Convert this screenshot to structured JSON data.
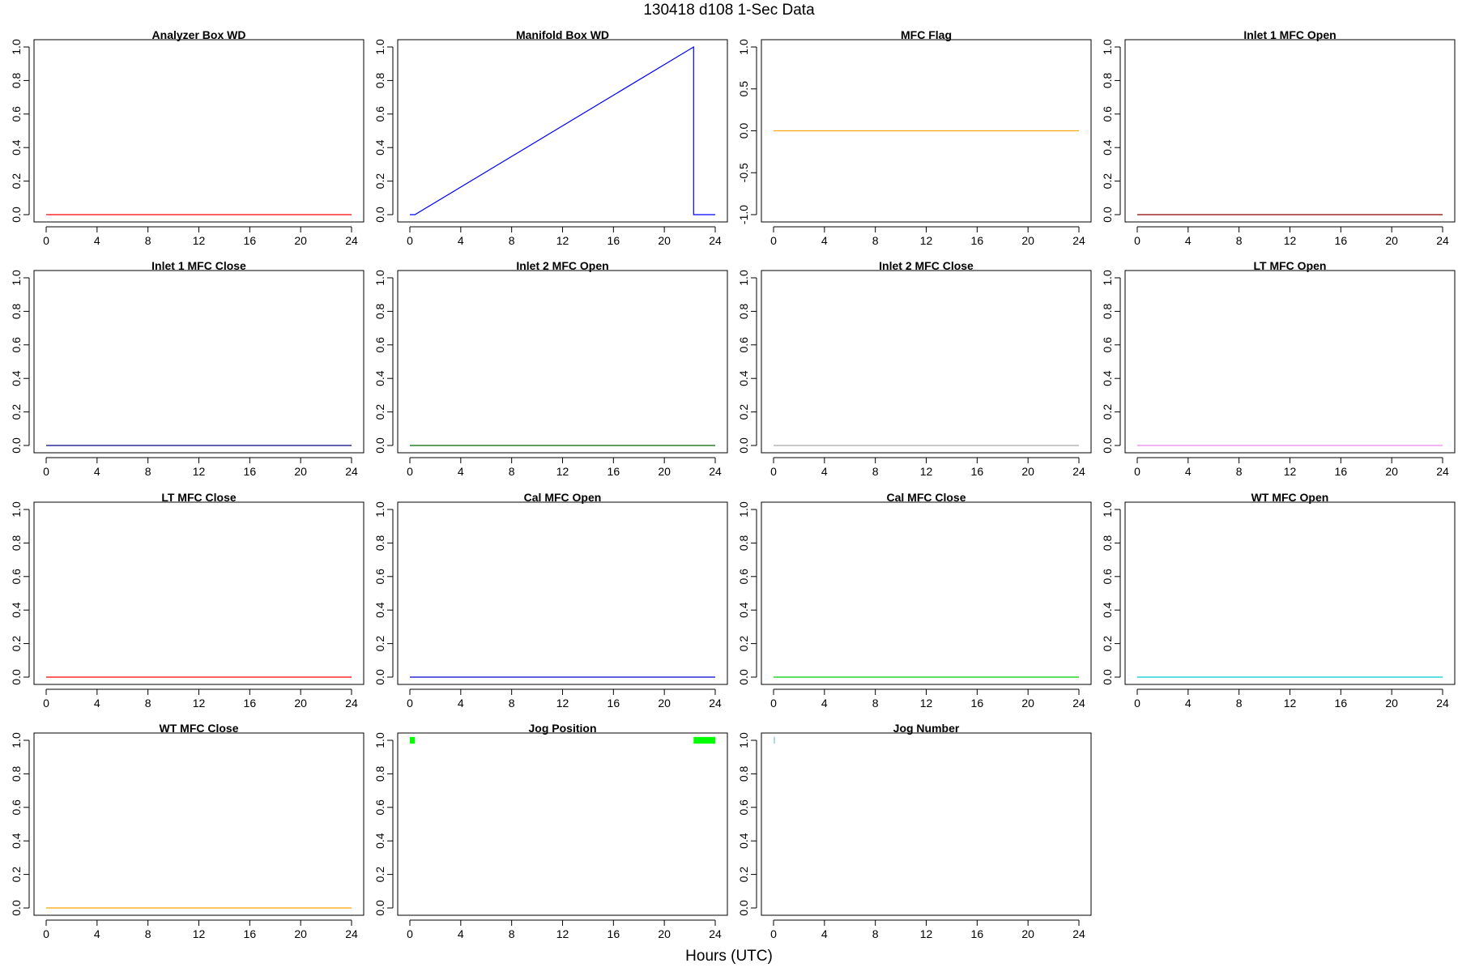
{
  "figure": {
    "title": "130418   d108   1-Sec Data",
    "xlabel": "Hours (UTC)"
  },
  "chart_data": [
    {
      "type": "line",
      "title": "Analyzer Box WD",
      "color": "#FF0000",
      "xlim": [
        0,
        24
      ],
      "ylim": [
        0,
        1
      ],
      "xticks": [
        0,
        4,
        8,
        12,
        16,
        20,
        24
      ],
      "yticks": [
        "0.0",
        "0.2",
        "0.4",
        "0.6",
        "0.8",
        "1.0"
      ],
      "series": [
        {
          "x": [
            0,
            24
          ],
          "y": [
            0,
            0
          ]
        }
      ]
    },
    {
      "type": "line",
      "title": "Manifold Box WD",
      "color": "#0000FF",
      "xlim": [
        0,
        24
      ],
      "ylim": [
        0,
        1
      ],
      "xticks": [
        0,
        4,
        8,
        12,
        16,
        20,
        24
      ],
      "yticks": [
        "0.0",
        "0.2",
        "0.4",
        "0.6",
        "0.8",
        "1.0"
      ],
      "series": [
        {
          "x": [
            0,
            0.4,
            22.3,
            22.3,
            24
          ],
          "y": [
            0,
            0,
            1,
            0,
            0
          ]
        }
      ]
    },
    {
      "type": "line",
      "title": "MFC Flag",
      "color": "#FFA500",
      "xlim": [
        0,
        24
      ],
      "ylim": [
        -1,
        1
      ],
      "xticks": [
        0,
        4,
        8,
        12,
        16,
        20,
        24
      ],
      "yticks": [
        "-1.0",
        "-0.5",
        "0.0",
        "0.5",
        "1.0"
      ],
      "series": [
        {
          "x": [
            0,
            24
          ],
          "y": [
            0,
            0
          ]
        }
      ]
    },
    {
      "type": "line",
      "title": "Inlet 1 MFC Open",
      "color": "#8B0000",
      "xlim": [
        0,
        24
      ],
      "ylim": [
        0,
        1
      ],
      "xticks": [
        0,
        4,
        8,
        12,
        16,
        20,
        24
      ],
      "yticks": [
        "0.0",
        "0.2",
        "0.4",
        "0.6",
        "0.8",
        "1.0"
      ],
      "series": [
        {
          "x": [
            0,
            24
          ],
          "y": [
            0,
            0
          ]
        }
      ]
    },
    {
      "type": "line",
      "title": "Inlet 1 MFC Close",
      "color": "#00008B",
      "xlim": [
        0,
        24
      ],
      "ylim": [
        0,
        1
      ],
      "xticks": [
        0,
        4,
        8,
        12,
        16,
        20,
        24
      ],
      "yticks": [
        "0.0",
        "0.2",
        "0.4",
        "0.6",
        "0.8",
        "1.0"
      ],
      "series": [
        {
          "x": [
            0,
            24
          ],
          "y": [
            0,
            0
          ]
        }
      ]
    },
    {
      "type": "line",
      "title": "Inlet 2 MFC Open",
      "color": "#006400",
      "xlim": [
        0,
        24
      ],
      "ylim": [
        0,
        1
      ],
      "xticks": [
        0,
        4,
        8,
        12,
        16,
        20,
        24
      ],
      "yticks": [
        "0.0",
        "0.2",
        "0.4",
        "0.6",
        "0.8",
        "1.0"
      ],
      "series": [
        {
          "x": [
            0,
            24
          ],
          "y": [
            0,
            0
          ]
        }
      ]
    },
    {
      "type": "line",
      "title": "Inlet 2 MFC Close",
      "color": "#A9A9A9",
      "xlim": [
        0,
        24
      ],
      "ylim": [
        0,
        1
      ],
      "xticks": [
        0,
        4,
        8,
        12,
        16,
        20,
        24
      ],
      "yticks": [
        "0.0",
        "0.2",
        "0.4",
        "0.6",
        "0.8",
        "1.0"
      ],
      "series": [
        {
          "x": [
            0,
            24
          ],
          "y": [
            0,
            0
          ]
        }
      ]
    },
    {
      "type": "line",
      "title": "LT MFC Open",
      "color": "#EE82EE",
      "xlim": [
        0,
        24
      ],
      "ylim": [
        0,
        1
      ],
      "xticks": [
        0,
        4,
        8,
        12,
        16,
        20,
        24
      ],
      "yticks": [
        "0.0",
        "0.2",
        "0.4",
        "0.6",
        "0.8",
        "1.0"
      ],
      "series": [
        {
          "x": [
            0,
            24
          ],
          "y": [
            0,
            0
          ]
        }
      ]
    },
    {
      "type": "line",
      "title": "LT MFC Close",
      "color": "#FF0000",
      "xlim": [
        0,
        24
      ],
      "ylim": [
        0,
        1
      ],
      "xticks": [
        0,
        4,
        8,
        12,
        16,
        20,
        24
      ],
      "yticks": [
        "0.0",
        "0.2",
        "0.4",
        "0.6",
        "0.8",
        "1.0"
      ],
      "series": [
        {
          "x": [
            0,
            24
          ],
          "y": [
            0,
            0
          ]
        }
      ]
    },
    {
      "type": "line",
      "title": "Cal MFC Open",
      "color": "#0000CD",
      "xlim": [
        0,
        24
      ],
      "ylim": [
        0,
        1
      ],
      "xticks": [
        0,
        4,
        8,
        12,
        16,
        20,
        24
      ],
      "yticks": [
        "0.0",
        "0.2",
        "0.4",
        "0.6",
        "0.8",
        "1.0"
      ],
      "series": [
        {
          "x": [
            0,
            24
          ],
          "y": [
            0,
            0
          ]
        }
      ]
    },
    {
      "type": "line",
      "title": "Cal MFC Close",
      "color": "#00CC00",
      "xlim": [
        0,
        24
      ],
      "ylim": [
        0,
        1
      ],
      "xticks": [
        0,
        4,
        8,
        12,
        16,
        20,
        24
      ],
      "yticks": [
        "0.0",
        "0.2",
        "0.4",
        "0.6",
        "0.8",
        "1.0"
      ],
      "series": [
        {
          "x": [
            0,
            24
          ],
          "y": [
            0,
            0
          ]
        }
      ]
    },
    {
      "type": "line",
      "title": "WT MFC Open",
      "color": "#00CED1",
      "xlim": [
        0,
        24
      ],
      "ylim": [
        0,
        1
      ],
      "xticks": [
        0,
        4,
        8,
        12,
        16,
        20,
        24
      ],
      "yticks": [
        "0.0",
        "0.2",
        "0.4",
        "0.6",
        "0.8",
        "1.0"
      ],
      "series": [
        {
          "x": [
            0,
            24
          ],
          "y": [
            0,
            0
          ]
        }
      ]
    },
    {
      "type": "line",
      "title": "WT MFC Close",
      "color": "#FFA500",
      "xlim": [
        0,
        24
      ],
      "ylim": [
        0,
        1
      ],
      "xticks": [
        0,
        4,
        8,
        12,
        16,
        20,
        24
      ],
      "yticks": [
        "0.0",
        "0.2",
        "0.4",
        "0.6",
        "0.8",
        "1.0"
      ],
      "series": [
        {
          "x": [
            0,
            24
          ],
          "y": [
            0,
            0
          ]
        }
      ]
    },
    {
      "type": "bar",
      "title": "Jog Position",
      "color": "#00FF00",
      "xlim": [
        0,
        24
      ],
      "ylim": [
        0,
        1
      ],
      "xticks": [
        0,
        4,
        8,
        12,
        16,
        20,
        24
      ],
      "yticks": [
        "0.0",
        "0.2",
        "0.4",
        "0.6",
        "0.8",
        "1.0"
      ],
      "segments": [
        {
          "x0": 0.0,
          "x1": 0.4,
          "y0": 0.98,
          "y1": 1.02
        },
        {
          "x0": 22.3,
          "x1": 24.0,
          "y0": 0.98,
          "y1": 1.02
        }
      ]
    },
    {
      "type": "bar",
      "title": "Jog Number",
      "color": "#ADD8E6",
      "xlim": [
        0,
        24
      ],
      "ylim": [
        0,
        1
      ],
      "xticks": [
        0,
        4,
        8,
        12,
        16,
        20,
        24
      ],
      "yticks": [
        "0.0",
        "0.2",
        "0.4",
        "0.6",
        "0.8",
        "1.0"
      ],
      "segments": [
        {
          "x0": 0.0,
          "x1": 0.1,
          "y0": 0.98,
          "y1": 1.02
        }
      ]
    }
  ]
}
